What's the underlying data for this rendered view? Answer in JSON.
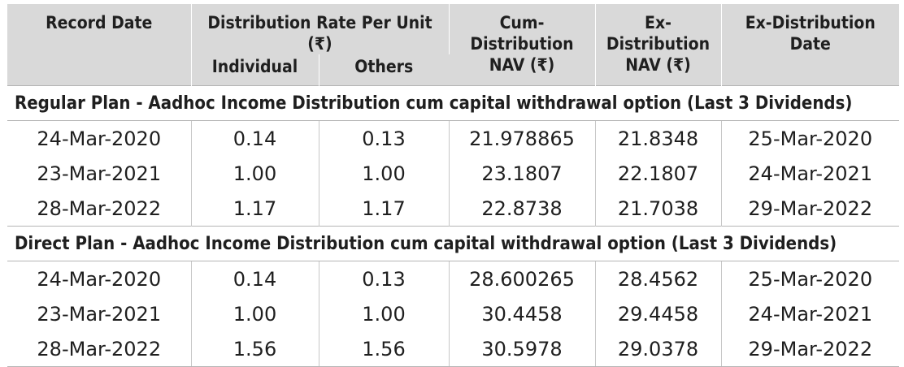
{
  "headers": {
    "record_date": "Record Date",
    "distribution_rate": "Distribution Rate Per Unit  (₹)",
    "individual": "Individual",
    "others": "Others",
    "cum_nav_line1": "Cum-Distribution",
    "cum_nav_line2": "NAV (₹)",
    "ex_nav_line1": "Ex-Distribution",
    "ex_nav_line2": "NAV (₹)",
    "ex_date_line1": "Ex-Distribution",
    "ex_date_line2": "Date"
  },
  "sections": [
    {
      "title": "Regular Plan - Aadhoc Income Distribution cum capital withdrawal option (Last 3 Dividends)",
      "rows": [
        {
          "record_date": "24-Mar-2020",
          "individual": "0.14",
          "others": "0.13",
          "cum_nav": "21.978865",
          "ex_nav": "21.8348",
          "ex_date": "25-Mar-2020"
        },
        {
          "record_date": "23-Mar-2021",
          "individual": "1.00",
          "others": "1.00",
          "cum_nav": "23.1807",
          "ex_nav": "22.1807",
          "ex_date": "24-Mar-2021"
        },
        {
          "record_date": "28-Mar-2022",
          "individual": "1.17",
          "others": "1.17",
          "cum_nav": "22.8738",
          "ex_nav": "21.7038",
          "ex_date": "29-Mar-2022"
        }
      ]
    },
    {
      "title": "Direct Plan - Aadhoc Income Distribution cum capital withdrawal option (Last 3 Dividends)",
      "rows": [
        {
          "record_date": "24-Mar-2020",
          "individual": "0.14",
          "others": "0.13",
          "cum_nav": "28.600265",
          "ex_nav": "28.4562",
          "ex_date": "25-Mar-2020"
        },
        {
          "record_date": "23-Mar-2021",
          "individual": "1.00",
          "others": "1.00",
          "cum_nav": "30.4458",
          "ex_nav": "29.4458",
          "ex_date": "24-Mar-2021"
        },
        {
          "record_date": "28-Mar-2022",
          "individual": "1.56",
          "others": "1.56",
          "cum_nav": "30.5978",
          "ex_nav": "29.0378",
          "ex_date": "29-Mar-2022"
        }
      ]
    }
  ]
}
